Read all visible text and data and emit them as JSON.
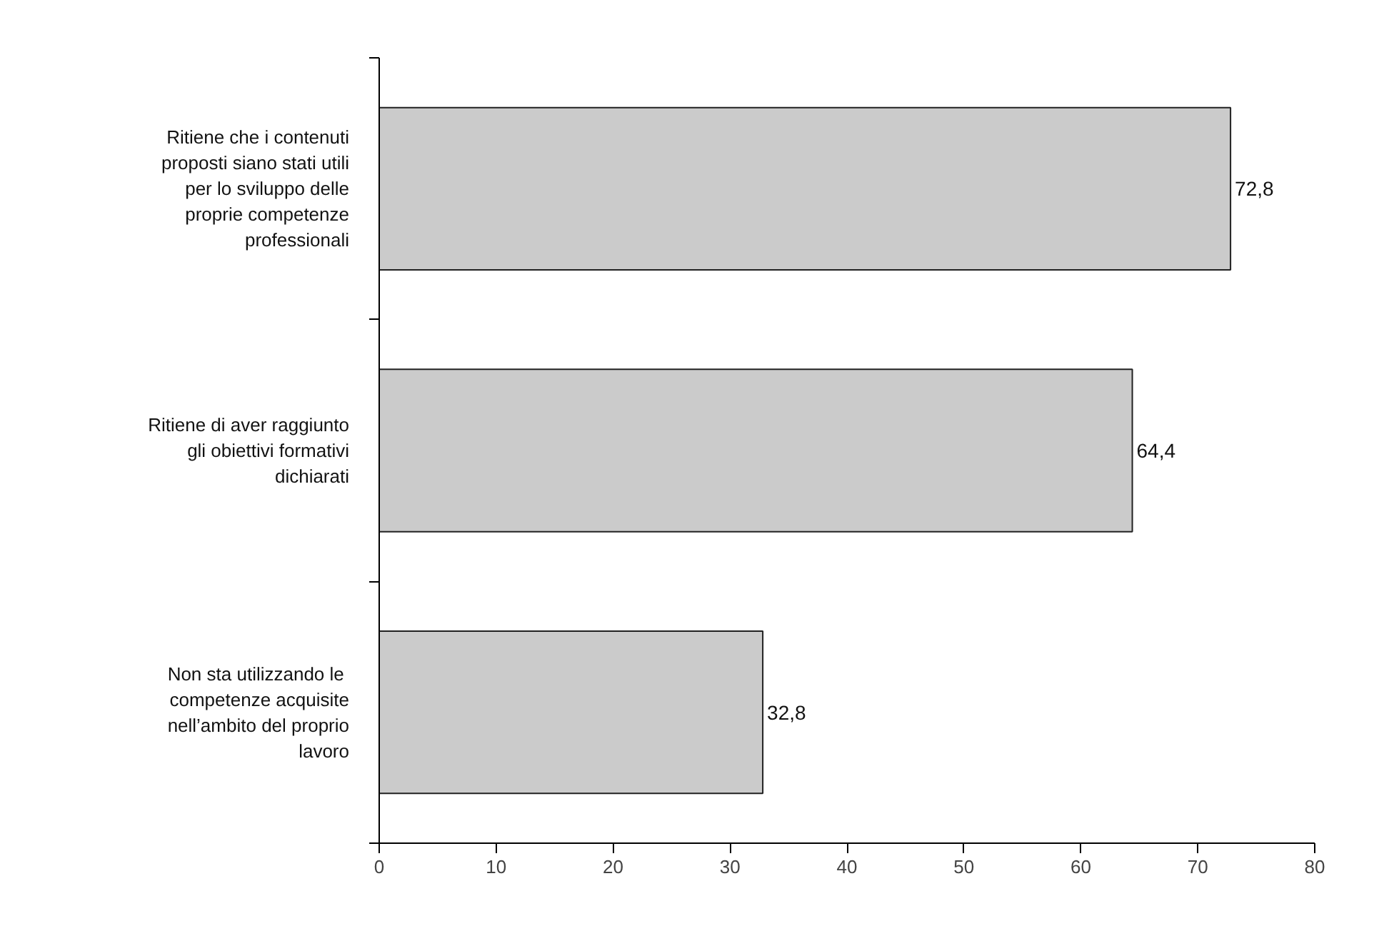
{
  "chart_data": {
    "type": "bar",
    "orientation": "horizontal",
    "categories": [
      "Ritiene che i contenuti proposti siano stati utili per lo sviluppo delle proprie competenze professionali",
      "Ritiene di aver raggiunto gli obiettivi formativi dichiarati",
      "Non sta  utilizzando le competenze acquisite nell’ambito del proprio lavoro"
    ],
    "values": [
      72.8,
      64.4,
      32.8
    ],
    "value_labels": [
      "72,8",
      "64,4",
      "32,8"
    ],
    "color": "#cbcbcb",
    "xlim": [
      0,
      80
    ],
    "xticks": [
      0,
      10,
      20,
      30,
      40,
      50,
      60,
      70,
      80
    ],
    "grid": false
  }
}
